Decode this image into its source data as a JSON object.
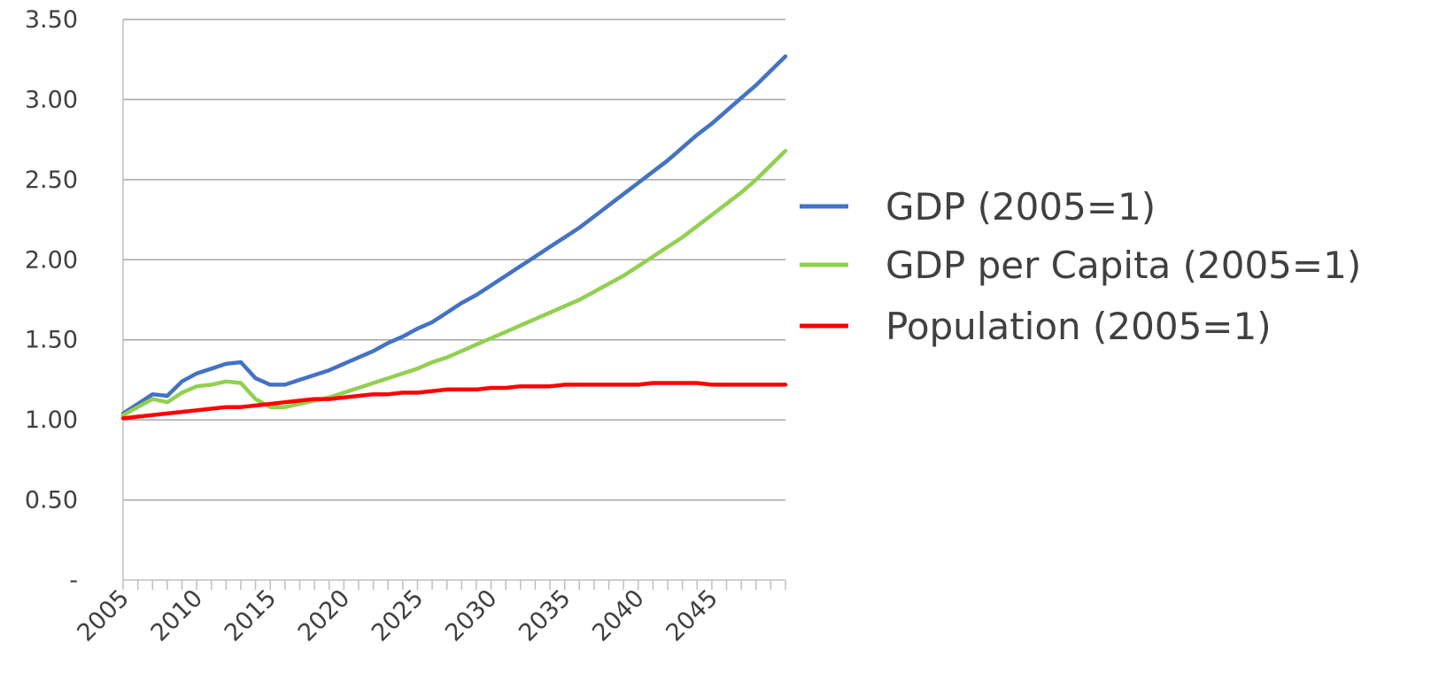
{
  "chart_data": {
    "type": "line",
    "title": "",
    "xlabel": "",
    "ylabel": "",
    "xlim": [
      2005,
      2050
    ],
    "ylim": [
      0,
      3.5
    ],
    "grid": true,
    "legend_position": "right",
    "y_ticks": [
      "-",
      "0.50",
      "1.00",
      "1.50",
      "2.00",
      "2.50",
      "3.00",
      "3.50"
    ],
    "x_ticks": [
      "2005",
      "2010",
      "2015",
      "2020",
      "2025",
      "2030",
      "2035",
      "2040",
      "2045"
    ],
    "x": [
      2005,
      2006,
      2007,
      2008,
      2009,
      2010,
      2011,
      2012,
      2013,
      2014,
      2015,
      2016,
      2017,
      2018,
      2019,
      2020,
      2021,
      2022,
      2023,
      2024,
      2025,
      2026,
      2027,
      2028,
      2029,
      2030,
      2031,
      2032,
      2033,
      2034,
      2035,
      2036,
      2037,
      2038,
      2039,
      2040,
      2041,
      2042,
      2043,
      2044,
      2045,
      2046,
      2047,
      2048,
      2049,
      2050
    ],
    "series": [
      {
        "name": "GDP (2005=1)",
        "color": "#4472c4",
        "values": [
          1.04,
          1.1,
          1.16,
          1.15,
          1.24,
          1.29,
          1.32,
          1.35,
          1.36,
          1.26,
          1.22,
          1.22,
          1.25,
          1.28,
          1.31,
          1.35,
          1.39,
          1.43,
          1.48,
          1.52,
          1.57,
          1.61,
          1.67,
          1.73,
          1.78,
          1.84,
          1.9,
          1.96,
          2.02,
          2.08,
          2.14,
          2.2,
          2.27,
          2.34,
          2.41,
          2.48,
          2.55,
          2.62,
          2.7,
          2.78,
          2.85,
          2.93,
          3.01,
          3.09,
          3.18,
          3.27
        ]
      },
      {
        "name": "GDP per Capita (2005=1)",
        "color": "#92d050",
        "values": [
          1.03,
          1.08,
          1.13,
          1.11,
          1.17,
          1.21,
          1.22,
          1.24,
          1.23,
          1.13,
          1.08,
          1.08,
          1.1,
          1.12,
          1.14,
          1.17,
          1.2,
          1.23,
          1.26,
          1.29,
          1.32,
          1.36,
          1.39,
          1.43,
          1.47,
          1.51,
          1.55,
          1.59,
          1.63,
          1.67,
          1.71,
          1.75,
          1.8,
          1.85,
          1.9,
          1.96,
          2.02,
          2.08,
          2.14,
          2.21,
          2.28,
          2.35,
          2.42,
          2.5,
          2.59,
          2.68
        ]
      },
      {
        "name": "Population (2005=1)",
        "color": "#ff0000",
        "values": [
          1.01,
          1.02,
          1.03,
          1.04,
          1.05,
          1.06,
          1.07,
          1.08,
          1.08,
          1.09,
          1.1,
          1.11,
          1.12,
          1.13,
          1.13,
          1.14,
          1.15,
          1.16,
          1.16,
          1.17,
          1.17,
          1.18,
          1.19,
          1.19,
          1.19,
          1.2,
          1.2,
          1.21,
          1.21,
          1.21,
          1.22,
          1.22,
          1.22,
          1.22,
          1.22,
          1.22,
          1.23,
          1.23,
          1.23,
          1.23,
          1.22,
          1.22,
          1.22,
          1.22,
          1.22,
          1.22
        ]
      }
    ]
  }
}
